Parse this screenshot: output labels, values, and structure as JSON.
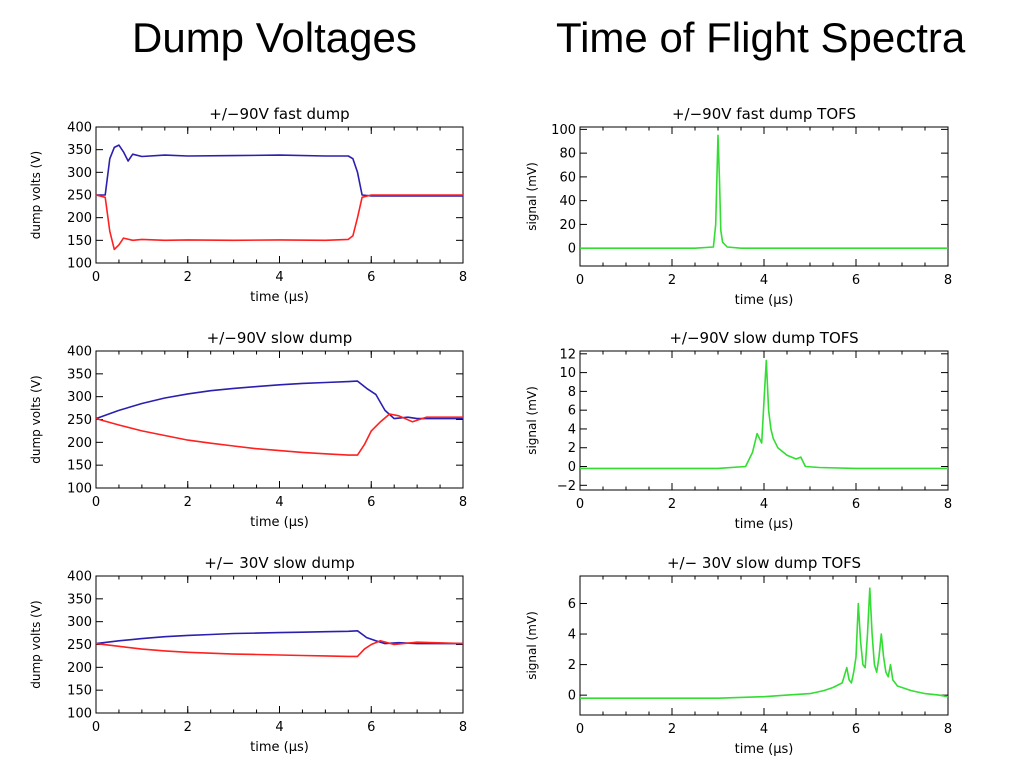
{
  "headings": {
    "left": "Dump Voltages",
    "right": "Time of Flight Spectra"
  },
  "colors": {
    "upper_electrode": "#2b1fb0",
    "lower_electrode": "#ff2020",
    "tofs": "#33dd33",
    "axes": "#000000"
  },
  "chart_data": [
    {
      "type": "line",
      "title": "+/−90V fast dump",
      "xlabel": "time (μs)",
      "ylabel": "dump volts (V)",
      "xlim": [
        0,
        8
      ],
      "ylim": [
        100,
        400
      ],
      "xticks": [
        "0",
        "2",
        "4",
        "6",
        "8"
      ],
      "yticks": [
        "100",
        "150",
        "200",
        "250",
        "300",
        "350",
        "400"
      ],
      "grid": false,
      "series": [
        {
          "x": [
            0,
            0.2,
            0.3,
            0.4,
            0.5,
            0.6,
            0.7,
            0.8,
            1.0,
            1.5,
            2.0,
            3.0,
            4.0,
            5.0,
            5.5,
            5.6,
            5.7,
            5.8,
            6.0,
            7.0,
            8.0
          ],
          "y": [
            250,
            250,
            330,
            355,
            360,
            345,
            325,
            340,
            335,
            338,
            336,
            337,
            338,
            336,
            336,
            330,
            300,
            250,
            248,
            248,
            248
          ]
        },
        {
          "x": [
            0,
            0.2,
            0.3,
            0.4,
            0.5,
            0.6,
            0.8,
            1.0,
            1.5,
            2.0,
            3.0,
            4.0,
            5.0,
            5.5,
            5.6,
            5.7,
            5.8,
            6.0,
            7.0,
            8.0
          ],
          "y": [
            250,
            245,
            170,
            130,
            140,
            155,
            150,
            152,
            150,
            151,
            150,
            151,
            150,
            152,
            160,
            200,
            245,
            250,
            250,
            250
          ]
        }
      ]
    },
    {
      "type": "line",
      "title": "+/−90V fast dump TOFS",
      "xlabel": "time (μs)",
      "ylabel": "signal (mV)",
      "xlim": [
        0,
        8
      ],
      "ylim": [
        -15,
        102
      ],
      "xticks": [
        "0",
        "2",
        "4",
        "6",
        "8"
      ],
      "yticks": [
        "0",
        "20",
        "40",
        "60",
        "80",
        "100"
      ],
      "grid": false,
      "series": [
        {
          "x": [
            0,
            2.5,
            2.9,
            2.95,
            3.0,
            3.03,
            3.06,
            3.1,
            3.2,
            3.5,
            5.0,
            8.0
          ],
          "y": [
            0,
            0,
            1,
            20,
            95,
            60,
            15,
            5,
            1,
            0,
            0,
            0
          ]
        }
      ]
    },
    {
      "type": "line",
      "title": "+/−90V slow dump",
      "xlabel": "time (μs)",
      "ylabel": "dump volts (V)",
      "xlim": [
        0,
        8
      ],
      "ylim": [
        100,
        400
      ],
      "xticks": [
        "0",
        "2",
        "4",
        "6",
        "8"
      ],
      "yticks": [
        "100",
        "150",
        "200",
        "250",
        "300",
        "350",
        "400"
      ],
      "grid": false,
      "series": [
        {
          "x": [
            0,
            0.5,
            1,
            1.5,
            2,
            2.5,
            3,
            3.5,
            4,
            4.5,
            5,
            5.5,
            5.7,
            5.9,
            6.1,
            6.3,
            6.5,
            6.8,
            7.0,
            8.0
          ],
          "y": [
            252,
            270,
            285,
            297,
            306,
            313,
            318,
            322,
            326,
            329,
            331,
            333,
            334,
            318,
            305,
            270,
            252,
            255,
            252,
            252
          ]
        },
        {
          "x": [
            0,
            0.5,
            1,
            1.5,
            2,
            2.5,
            3,
            3.5,
            4,
            4.5,
            5,
            5.5,
            5.7,
            5.85,
            6.0,
            6.2,
            6.4,
            6.6,
            6.9,
            7.2,
            8.0
          ],
          "y": [
            252,
            238,
            225,
            215,
            205,
            198,
            192,
            186,
            182,
            178,
            175,
            172,
            172,
            195,
            225,
            245,
            262,
            258,
            245,
            255,
            255
          ]
        }
      ]
    },
    {
      "type": "line",
      "title": "+/−90V slow dump TOFS",
      "xlabel": "time (μs)",
      "ylabel": "signal (mV)",
      "xlim": [
        0,
        8
      ],
      "ylim": [
        -2.5,
        12.3
      ],
      "xticks": [
        "0",
        "2",
        "4",
        "6",
        "8"
      ],
      "yticks": [
        "−2",
        "0",
        "2",
        "4",
        "6",
        "8",
        "10",
        "12"
      ],
      "grid": false,
      "series": [
        {
          "x": [
            0,
            3.0,
            3.6,
            3.75,
            3.85,
            3.95,
            4.0,
            4.05,
            4.1,
            4.15,
            4.2,
            4.3,
            4.5,
            4.7,
            4.8,
            4.9,
            5.2,
            6,
            8
          ],
          "y": [
            -0.2,
            -0.2,
            0,
            1.5,
            3.5,
            2.5,
            7,
            11.3,
            6,
            4,
            3,
            2,
            1.2,
            0.8,
            1,
            0,
            -0.1,
            -0.2,
            -0.2
          ]
        }
      ]
    },
    {
      "type": "line",
      "title": "+/− 30V slow dump",
      "xlabel": "time (μs)",
      "ylabel": "dump volts (V)",
      "xlim": [
        0,
        8
      ],
      "ylim": [
        100,
        400
      ],
      "xticks": [
        "0",
        "2",
        "4",
        "6",
        "8"
      ],
      "yticks": [
        "100",
        "150",
        "200",
        "250",
        "300",
        "350",
        "400"
      ],
      "grid": false,
      "series": [
        {
          "x": [
            0,
            0.5,
            1,
            1.5,
            2,
            2.5,
            3,
            3.5,
            4,
            4.5,
            5,
            5.5,
            5.7,
            5.9,
            6.1,
            6.3,
            6.6,
            7.0,
            8.0
          ],
          "y": [
            252,
            258,
            263,
            267,
            270,
            272,
            274,
            275,
            276,
            277,
            278,
            279,
            280,
            265,
            258,
            252,
            254,
            252,
            252
          ]
        },
        {
          "x": [
            0,
            0.5,
            1,
            1.5,
            2,
            2.5,
            3,
            3.5,
            4,
            4.5,
            5,
            5.5,
            5.7,
            5.85,
            6.0,
            6.2,
            6.5,
            7.0,
            8.0
          ],
          "y": [
            252,
            246,
            240,
            236,
            233,
            231,
            229,
            228,
            227,
            226,
            225,
            224,
            224,
            240,
            250,
            258,
            250,
            255,
            252
          ]
        }
      ]
    },
    {
      "type": "line",
      "title": "+/− 30V slow dump TOFS",
      "xlabel": "time (μs)",
      "ylabel": "signal (mV)",
      "xlim": [
        0,
        8
      ],
      "ylim": [
        -1.3,
        7.8
      ],
      "xticks": [
        "0",
        "2",
        "4",
        "6",
        "8"
      ],
      "yticks": [
        "0",
        "2",
        "4",
        "6"
      ],
      "grid": false,
      "series": [
        {
          "x": [
            0,
            3,
            4,
            4.5,
            5.0,
            5.3,
            5.5,
            5.7,
            5.8,
            5.85,
            5.9,
            5.95,
            6.0,
            6.05,
            6.1,
            6.15,
            6.2,
            6.25,
            6.3,
            6.35,
            6.4,
            6.45,
            6.5,
            6.55,
            6.6,
            6.65,
            6.7,
            6.75,
            6.8,
            6.85,
            6.9,
            7.0,
            7.2,
            7.5,
            7.8,
            8.0
          ],
          "y": [
            -0.2,
            -0.2,
            -0.1,
            0,
            0.1,
            0.3,
            0.5,
            0.8,
            1.8,
            1.0,
            0.8,
            1.5,
            2.5,
            6.0,
            3.5,
            2.0,
            1.8,
            4.0,
            7.0,
            4.0,
            2.0,
            1.5,
            2.5,
            4.0,
            2.5,
            1.5,
            1.2,
            2.0,
            1.0,
            0.8,
            0.6,
            0.5,
            0.3,
            0.1,
            0,
            -0.1
          ]
        }
      ]
    }
  ]
}
